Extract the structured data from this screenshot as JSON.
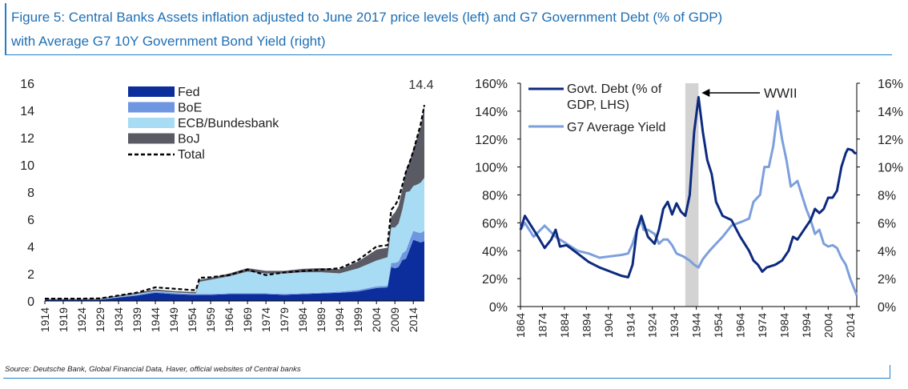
{
  "figure": {
    "title_line1": "Figure 5: Central Banks Assets inflation adjusted to June 2017 price levels (left) and G7 Government Debt (% of GDP)",
    "title_line2": "with Average G7 10Y Government Bond Yield (right)",
    "source": "Source: Deutsche Bank, Global Financial Data, Haver, official websites of Central banks"
  },
  "colors": {
    "title": "#1f6fb4",
    "fed": "#0c2e9c",
    "boe": "#6f96e0",
    "ecb": "#a8dcf4",
    "boj": "#5a5a64",
    "total": "#000000",
    "debt": "#0d2a7e",
    "yield": "#7d9fdc",
    "wwii_band": "#d3d3d3"
  },
  "chart_data": [
    {
      "type": "area",
      "stacked": true,
      "x": [
        1914,
        1919,
        1924,
        1929,
        1934,
        1939,
        1944,
        1949,
        1954,
        1955,
        1956,
        1959,
        1964,
        1969,
        1974,
        1979,
        1984,
        1989,
        1994,
        1999,
        2004,
        2007,
        2008,
        2009,
        2010,
        2011,
        2012,
        2013,
        2014,
        2015,
        2016,
        2017
      ],
      "series": [
        {
          "name": "Fed",
          "values": [
            0.1,
            0.1,
            0.1,
            0.1,
            0.25,
            0.4,
            0.6,
            0.5,
            0.45,
            0.45,
            0.45,
            0.45,
            0.5,
            0.5,
            0.5,
            0.45,
            0.5,
            0.55,
            0.6,
            0.7,
            0.95,
            1.0,
            2.5,
            2.4,
            2.5,
            3.0,
            3.1,
            3.8,
            4.5,
            4.4,
            4.3,
            4.4
          ]
        },
        {
          "name": "BoE",
          "values": [
            0.02,
            0.02,
            0.02,
            0.02,
            0.04,
            0.06,
            0.08,
            0.08,
            0.06,
            0.06,
            0.06,
            0.06,
            0.06,
            0.06,
            0.06,
            0.06,
            0.06,
            0.06,
            0.08,
            0.1,
            0.12,
            0.12,
            0.3,
            0.4,
            0.4,
            0.5,
            0.6,
            0.65,
            0.65,
            0.65,
            0.7,
            0.75
          ]
        },
        {
          "name": "ECB/Bundesbank",
          "values": [
            0.02,
            0.02,
            0.02,
            0.02,
            0.03,
            0.05,
            0.05,
            0.05,
            0.05,
            0.05,
            0.9,
            1.05,
            1.25,
            1.6,
            1.45,
            1.5,
            1.55,
            1.5,
            1.35,
            1.6,
            1.9,
            2.1,
            2.6,
            2.6,
            2.8,
            3.2,
            4.3,
            3.6,
            3.3,
            3.5,
            3.7,
            3.9
          ]
        },
        {
          "name": "BoJ",
          "values": [
            0.03,
            0.03,
            0.03,
            0.05,
            0.08,
            0.1,
            0.12,
            0.1,
            0.1,
            0.1,
            0.15,
            0.15,
            0.2,
            0.25,
            0.2,
            0.2,
            0.25,
            0.3,
            0.3,
            0.5,
            0.8,
            0.7,
            0.8,
            1.1,
            1.3,
            1.5,
            1.6,
            2.2,
            2.7,
            3.4,
            4.1,
            5.35
          ]
        },
        {
          "name": "Total",
          "values": [
            0.17,
            0.17,
            0.17,
            0.19,
            0.4,
            0.61,
            1.0,
            0.9,
            0.8,
            0.8,
            1.7,
            1.75,
            1.9,
            2.3,
            1.9,
            2.1,
            2.2,
            2.3,
            2.4,
            3.0,
            4.0,
            4.1,
            6.7,
            7.0,
            7.5,
            8.5,
            9.5,
            10.2,
            11.0,
            12.0,
            13.0,
            14.4
          ]
        }
      ],
      "ylim": [
        0,
        16
      ],
      "yticks": [
        0,
        2,
        4,
        6,
        8,
        10,
        12,
        14,
        16
      ],
      "xticks": [
        1914,
        1919,
        1924,
        1929,
        1934,
        1939,
        1944,
        1949,
        1954,
        1959,
        1964,
        1969,
        1974,
        1979,
        1984,
        1989,
        1994,
        1999,
        2004,
        2009,
        2014
      ],
      "annotations": [
        {
          "text": "14.4",
          "x": 2017,
          "y": 14.4
        }
      ],
      "legend": "top-left"
    },
    {
      "type": "line",
      "series": [
        {
          "name": "Govt. Debt (% of GDP, LHS)",
          "axis": "left",
          "points": [
            [
              1864,
              55
            ],
            [
              1866,
              65
            ],
            [
              1868,
              60
            ],
            [
              1872,
              50
            ],
            [
              1875,
              42
            ],
            [
              1878,
              48
            ],
            [
              1880,
              55
            ],
            [
              1882,
              43
            ],
            [
              1885,
              44
            ],
            [
              1890,
              38
            ],
            [
              1895,
              32
            ],
            [
              1900,
              28
            ],
            [
              1905,
              25
            ],
            [
              1910,
              22
            ],
            [
              1913,
              21
            ],
            [
              1915,
              30
            ],
            [
              1917,
              55
            ],
            [
              1919,
              65
            ],
            [
              1920,
              60
            ],
            [
              1922,
              50
            ],
            [
              1925,
              45
            ],
            [
              1927,
              55
            ],
            [
              1929,
              70
            ],
            [
              1931,
              75
            ],
            [
              1933,
              66
            ],
            [
              1935,
              74
            ],
            [
              1937,
              68
            ],
            [
              1939,
              65
            ],
            [
              1941,
              80
            ],
            [
              1943,
              125
            ],
            [
              1945,
              150
            ],
            [
              1947,
              125
            ],
            [
              1949,
              105
            ],
            [
              1951,
              95
            ],
            [
              1953,
              75
            ],
            [
              1956,
              65
            ],
            [
              1960,
              62
            ],
            [
              1964,
              50
            ],
            [
              1968,
              40
            ],
            [
              1970,
              33
            ],
            [
              1972,
              30
            ],
            [
              1974,
              25
            ],
            [
              1976,
              28
            ],
            [
              1980,
              30
            ],
            [
              1983,
              33
            ],
            [
              1986,
              40
            ],
            [
              1988,
              50
            ],
            [
              1990,
              48
            ],
            [
              1993,
              55
            ],
            [
              1996,
              62
            ],
            [
              1998,
              70
            ],
            [
              2000,
              67
            ],
            [
              2002,
              70
            ],
            [
              2004,
              78
            ],
            [
              2006,
              78
            ],
            [
              2008,
              83
            ],
            [
              2010,
              100
            ],
            [
              2012,
              110
            ],
            [
              2013,
              113
            ],
            [
              2015,
              112
            ],
            [
              2016,
              110
            ],
            [
              2017,
              110
            ]
          ]
        },
        {
          "name": "G7 Average Yield",
          "axis": "right",
          "points": [
            [
              1864,
              5.5
            ],
            [
              1866,
              6.0
            ],
            [
              1868,
              5.5
            ],
            [
              1870,
              5.0
            ],
            [
              1875,
              5.8
            ],
            [
              1880,
              5.0
            ],
            [
              1885,
              4.5
            ],
            [
              1890,
              4.0
            ],
            [
              1895,
              3.8
            ],
            [
              1900,
              3.5
            ],
            [
              1905,
              3.6
            ],
            [
              1910,
              3.7
            ],
            [
              1913,
              3.8
            ],
            [
              1915,
              4.5
            ],
            [
              1917,
              5.5
            ],
            [
              1919,
              6.2
            ],
            [
              1920,
              5.5
            ],
            [
              1922,
              5.5
            ],
            [
              1925,
              5.2
            ],
            [
              1927,
              4.5
            ],
            [
              1929,
              4.8
            ],
            [
              1931,
              4.8
            ],
            [
              1933,
              4.4
            ],
            [
              1935,
              3.8
            ],
            [
              1938,
              3.6
            ],
            [
              1941,
              3.3
            ],
            [
              1943,
              3.0
            ],
            [
              1945,
              2.8
            ],
            [
              1947,
              3.4
            ],
            [
              1950,
              4.0
            ],
            [
              1953,
              4.5
            ],
            [
              1956,
              5.0
            ],
            [
              1960,
              5.8
            ],
            [
              1965,
              6.1
            ],
            [
              1968,
              6.3
            ],
            [
              1970,
              7.5
            ],
            [
              1973,
              8.0
            ],
            [
              1975,
              10.0
            ],
            [
              1977,
              10.0
            ],
            [
              1979,
              11.5
            ],
            [
              1981,
              14.0
            ],
            [
              1983,
              12.0
            ],
            [
              1985,
              10.5
            ],
            [
              1987,
              8.6
            ],
            [
              1990,
              9.0
            ],
            [
              1992,
              8.0
            ],
            [
              1994,
              7.0
            ],
            [
              1996,
              6.2
            ],
            [
              1998,
              5.2
            ],
            [
              2000,
              5.5
            ],
            [
              2002,
              4.5
            ],
            [
              2004,
              4.3
            ],
            [
              2006,
              4.4
            ],
            [
              2008,
              4.2
            ],
            [
              2010,
              3.5
            ],
            [
              2012,
              3.0
            ],
            [
              2014,
              2.0
            ],
            [
              2016,
              1.2
            ],
            [
              2017,
              0.8
            ]
          ]
        }
      ],
      "xlim": [
        1864,
        2017
      ],
      "ylim_left": [
        0,
        160
      ],
      "ylim_right": [
        0,
        16
      ],
      "yticks_left": [
        "0%",
        "20%",
        "40%",
        "60%",
        "80%",
        "100%",
        "120%",
        "140%",
        "160%"
      ],
      "yticks_right": [
        "0%",
        "2%",
        "4%",
        "6%",
        "8%",
        "10%",
        "12%",
        "14%",
        "16%"
      ],
      "xticks": [
        1864,
        1874,
        1884,
        1894,
        1904,
        1914,
        1924,
        1934,
        1944,
        1954,
        1964,
        1974,
        1984,
        1994,
        2004,
        2014
      ],
      "shaded_band": {
        "x_from": 1939,
        "x_to": 1945,
        "label": "WWII"
      },
      "legend": "top-left"
    }
  ]
}
